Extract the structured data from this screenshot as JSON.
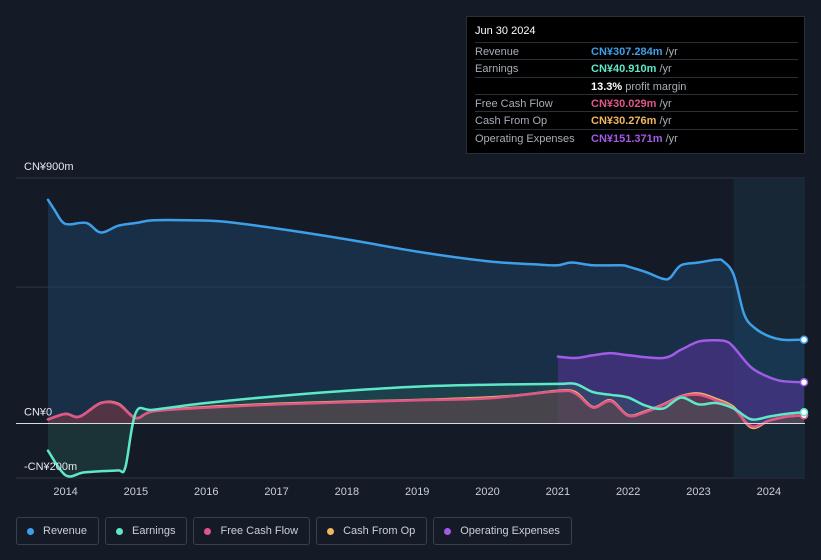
{
  "tooltip": {
    "date": "Jun 30 2024",
    "rows": [
      {
        "label": "Revenue",
        "value": "CN¥307.284m",
        "unit": "/yr",
        "color": "#3d9fe8"
      },
      {
        "label": "Earnings",
        "value": "CN¥40.910m",
        "unit": "/yr",
        "color": "#5ee8c7"
      },
      {
        "label": "",
        "value": "13.3%",
        "unit": "profit margin",
        "color": "#ffffff"
      },
      {
        "label": "Free Cash Flow",
        "value": "CN¥30.029m",
        "unit": "/yr",
        "color": "#e0558a"
      },
      {
        "label": "Cash From Op",
        "value": "CN¥30.276m",
        "unit": "/yr",
        "color": "#f0b660"
      },
      {
        "label": "Operating Expenses",
        "value": "CN¥151.371m",
        "unit": "/yr",
        "color": "#a25be8"
      }
    ]
  },
  "legend": [
    {
      "label": "Revenue",
      "color": "#3d9fe8"
    },
    {
      "label": "Earnings",
      "color": "#5ee8c7"
    },
    {
      "label": "Free Cash Flow",
      "color": "#e0558a"
    },
    {
      "label": "Cash From Op",
      "color": "#f0b660"
    },
    {
      "label": "Operating Expenses",
      "color": "#a25be8"
    }
  ],
  "chart_data": {
    "type": "line",
    "ylabels": [
      {
        "text": "CN¥900m",
        "value": 900
      },
      {
        "text": "CN¥0",
        "value": 0
      },
      {
        "text": "-CN¥200m",
        "value": -200
      }
    ],
    "xticks": [
      2014,
      2015,
      2016,
      2017,
      2018,
      2019,
      2020,
      2021,
      2022,
      2023,
      2024
    ],
    "ylim": [
      -200,
      900
    ],
    "xlim": [
      2013.75,
      2024.5
    ],
    "forecast_start": 2023.5,
    "series": [
      {
        "name": "Revenue",
        "color": "#3d9fe8",
        "points": [
          [
            2013.75,
            820
          ],
          [
            2013.85,
            780
          ],
          [
            2013.95,
            740
          ],
          [
            2014.05,
            730
          ],
          [
            2014.3,
            735
          ],
          [
            2014.5,
            700
          ],
          [
            2014.75,
            725
          ],
          [
            2015.0,
            735
          ],
          [
            2015.25,
            745
          ],
          [
            2015.75,
            745
          ],
          [
            2016.25,
            740
          ],
          [
            2017.0,
            715
          ],
          [
            2018.0,
            675
          ],
          [
            2019.0,
            630
          ],
          [
            2020.0,
            595
          ],
          [
            2020.75,
            582
          ],
          [
            2021.0,
            580
          ],
          [
            2021.2,
            590
          ],
          [
            2021.5,
            580
          ],
          [
            2021.9,
            580
          ],
          [
            2022.0,
            575
          ],
          [
            2022.25,
            555
          ],
          [
            2022.5,
            530
          ],
          [
            2022.6,
            535
          ],
          [
            2022.75,
            580
          ],
          [
            2023.0,
            590
          ],
          [
            2023.25,
            600
          ],
          [
            2023.35,
            595
          ],
          [
            2023.5,
            545
          ],
          [
            2023.65,
            400
          ],
          [
            2023.8,
            350
          ],
          [
            2024.0,
            320
          ],
          [
            2024.2,
            307
          ],
          [
            2024.5,
            307
          ]
        ]
      },
      {
        "name": "Operating Expenses",
        "color": "#a25be8",
        "points": [
          [
            2021.0,
            245
          ],
          [
            2021.25,
            240
          ],
          [
            2021.5,
            250
          ],
          [
            2021.75,
            258
          ],
          [
            2022.0,
            250
          ],
          [
            2022.5,
            240
          ],
          [
            2022.75,
            270
          ],
          [
            2023.0,
            300
          ],
          [
            2023.25,
            305
          ],
          [
            2023.4,
            300
          ],
          [
            2023.5,
            280
          ],
          [
            2023.75,
            205
          ],
          [
            2024.0,
            170
          ],
          [
            2024.2,
            155
          ],
          [
            2024.5,
            151
          ]
        ]
      },
      {
        "name": "Cash From Op",
        "color": "#f0b660",
        "points": [
          [
            2013.75,
            15
          ],
          [
            2014.0,
            35
          ],
          [
            2014.2,
            25
          ],
          [
            2014.5,
            75
          ],
          [
            2014.75,
            72
          ],
          [
            2015.0,
            20
          ],
          [
            2015.25,
            45
          ],
          [
            2016.0,
            60
          ],
          [
            2017.0,
            72
          ],
          [
            2018.0,
            80
          ],
          [
            2019.0,
            86
          ],
          [
            2020.0,
            95
          ],
          [
            2020.5,
            105
          ],
          [
            2021.0,
            120
          ],
          [
            2021.25,
            115
          ],
          [
            2021.5,
            60
          ],
          [
            2021.75,
            85
          ],
          [
            2022.0,
            30
          ],
          [
            2022.25,
            45
          ],
          [
            2022.5,
            70
          ],
          [
            2022.75,
            100
          ],
          [
            2023.0,
            110
          ],
          [
            2023.25,
            90
          ],
          [
            2023.5,
            60
          ],
          [
            2023.75,
            -15
          ],
          [
            2024.0,
            10
          ],
          [
            2024.25,
            25
          ],
          [
            2024.5,
            30
          ]
        ]
      },
      {
        "name": "Free Cash Flow",
        "color": "#e0558a",
        "points": [
          [
            2013.75,
            15
          ],
          [
            2014.0,
            35
          ],
          [
            2014.2,
            25
          ],
          [
            2014.5,
            75
          ],
          [
            2014.75,
            70
          ],
          [
            2015.0,
            20
          ],
          [
            2015.25,
            45
          ],
          [
            2016.0,
            58
          ],
          [
            2017.0,
            70
          ],
          [
            2018.0,
            78
          ],
          [
            2019.0,
            85
          ],
          [
            2020.0,
            92
          ],
          [
            2021.0,
            118
          ],
          [
            2021.25,
            110
          ],
          [
            2021.5,
            58
          ],
          [
            2021.75,
            82
          ],
          [
            2022.0,
            28
          ],
          [
            2022.25,
            42
          ],
          [
            2022.5,
            68
          ],
          [
            2022.75,
            98
          ],
          [
            2023.0,
            105
          ],
          [
            2023.25,
            85
          ],
          [
            2023.5,
            55
          ],
          [
            2023.75,
            -10
          ],
          [
            2024.0,
            10
          ],
          [
            2024.25,
            25
          ],
          [
            2024.5,
            30
          ]
        ]
      },
      {
        "name": "Earnings",
        "color": "#5ee8c7",
        "points": [
          [
            2013.75,
            -100
          ],
          [
            2014.0,
            -190
          ],
          [
            2014.25,
            -180
          ],
          [
            2014.5,
            -175
          ],
          [
            2014.75,
            -172
          ],
          [
            2014.85,
            -160
          ],
          [
            2015.0,
            40
          ],
          [
            2015.25,
            50
          ],
          [
            2016.0,
            75
          ],
          [
            2017.0,
            100
          ],
          [
            2018.0,
            120
          ],
          [
            2019.0,
            135
          ],
          [
            2020.0,
            142
          ],
          [
            2021.0,
            145
          ],
          [
            2021.25,
            145
          ],
          [
            2021.5,
            115
          ],
          [
            2021.75,
            105
          ],
          [
            2022.0,
            95
          ],
          [
            2022.25,
            65
          ],
          [
            2022.5,
            55
          ],
          [
            2022.75,
            95
          ],
          [
            2023.0,
            70
          ],
          [
            2023.25,
            75
          ],
          [
            2023.5,
            55
          ],
          [
            2023.75,
            15
          ],
          [
            2024.0,
            25
          ],
          [
            2024.25,
            35
          ],
          [
            2024.5,
            41
          ]
        ]
      }
    ]
  }
}
